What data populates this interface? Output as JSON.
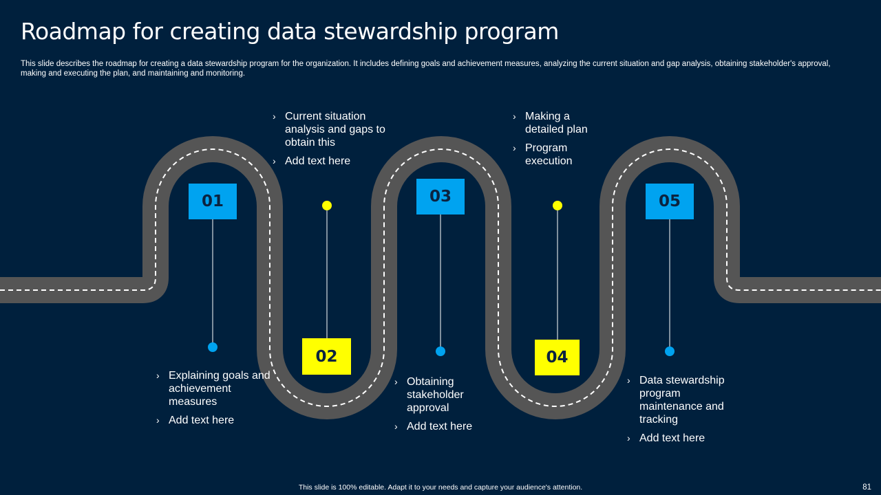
{
  "title": "Roadmap for creating data stewardship program",
  "subtitle": "This slide describes the roadmap for creating a data stewardship program for the organization. It includes defining goals and achievement measures, analyzing the current situation and gap analysis, obtaining stakeholder's approval, making and executing the plan, and maintaining and monitoring.",
  "colors": {
    "background": "#00203d",
    "road": "#555555",
    "accent_blue": "#00a3f0",
    "accent_yellow": "#ffff00"
  },
  "steps": [
    {
      "number": "01",
      "items": [
        "Explaining goals and achievement measures",
        "Add text here"
      ]
    },
    {
      "number": "02",
      "items": [
        "Current situation analysis and gaps to obtain this",
        "Add text here"
      ]
    },
    {
      "number": "03",
      "items": [
        "Obtaining stakeholder approval",
        "Add text here"
      ]
    },
    {
      "number": "04",
      "items": [
        "Making a detailed plan",
        "Program execution"
      ]
    },
    {
      "number": "05",
      "items": [
        "Data stewardship program maintenance and tracking",
        "Add text here"
      ]
    }
  ],
  "bullet_icon": "chevron-right-icon",
  "footer": "This slide is 100% editable.  Adapt it to your needs and capture your audience's attention.",
  "page_number": "81"
}
